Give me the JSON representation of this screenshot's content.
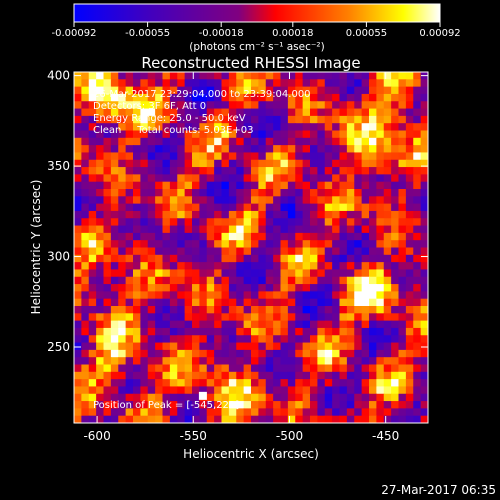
{
  "chart_data": {
    "type": "heatmap",
    "title": "Reconstructed RHESSI Image",
    "xlabel": "Heliocentric X (arcsec)",
    "ylabel": "Heliocentric Y (arcsec)",
    "xlim": [
      -612,
      -428
    ],
    "ylim": [
      208,
      402
    ],
    "x_ticks": [
      -600,
      -550,
      -500,
      -450
    ],
    "y_ticks": [
      250,
      300,
      350,
      400
    ],
    "x_tick_labels": [
      "-600",
      "-550",
      "-500",
      "-450"
    ],
    "y_tick_labels": [
      "250",
      "300",
      "350",
      "400"
    ],
    "colorbar": {
      "min": -0.00092,
      "max": 0.00092,
      "ticks": [
        -0.00092,
        -0.00055,
        -0.00018,
        0.00018,
        0.00055,
        0.00092
      ],
      "tick_labels": [
        "-0.00092",
        "-0.00055",
        "-0.00018",
        "0.00018",
        "0.00055",
        "0.00092"
      ],
      "unit_label": "(photons cm⁻² s⁻¹ asec⁻²)",
      "colors": [
        "#0000ff",
        "#4000c0",
        "#800080",
        "#ff0000",
        "#ff8000",
        "#ffff00",
        "#ffffff"
      ]
    },
    "annotations": [
      "26-Mar-2017 23:29:04.000 to 23:39:04.000",
      "Detectors: 3F 6F, Att 0",
      "Energy Range: 25.0 - 50.0 keV",
      "Clean     Total counts: 5.03E+03"
    ],
    "peak_label": "Position of Peak = [-545,223]",
    "peak": {
      "x": -545,
      "y": 223
    },
    "grid": false,
    "legend": "none"
  },
  "timestamp": "27-Mar-2017 06:35"
}
